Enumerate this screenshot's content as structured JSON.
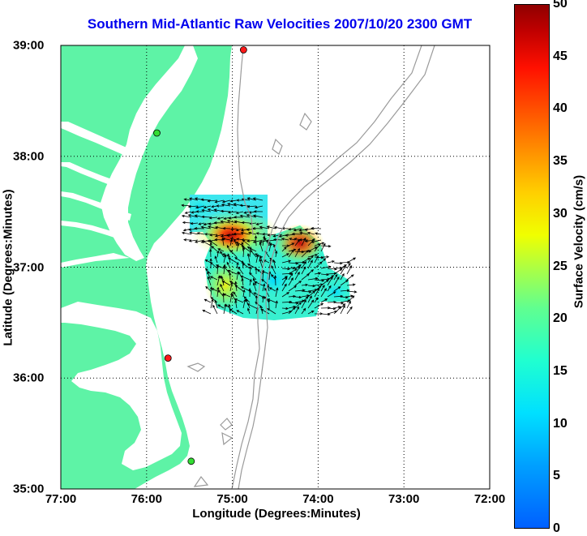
{
  "title": "Southern Mid-Atlantic Raw Velocities 2007/10/20 2300 GMT",
  "map": {
    "xlabel": "Longitude (Degrees:Minutes)",
    "ylabel": "Latitude (Degrees:Minutes)",
    "lon_range": [
      -77,
      -72
    ],
    "lat_range": [
      35,
      39
    ],
    "xticks": [
      "77:00",
      "76:00",
      "75:00",
      "74:00",
      "73:00",
      "72:00"
    ],
    "yticks": [
      "39:00",
      "38:00",
      "37:00",
      "36:00",
      "35:00"
    ],
    "grid": "dotted",
    "land_color": "#5ef3a6",
    "water_color": "#ffffff",
    "bathymetry_color": "#9a9a9a",
    "station_markers": [
      {
        "color": "#ff1a1a",
        "lon": -74.87,
        "lat": 38.96
      },
      {
        "color": "#33dd33",
        "lon": -75.88,
        "lat": 38.21
      },
      {
        "color": "#ff1a1a",
        "lon": -75.75,
        "lat": 36.18
      },
      {
        "color": "#33dd33",
        "lon": -75.48,
        "lat": 35.25
      }
    ]
  },
  "colorbar": {
    "label": "Surface Velocity (cm/s)",
    "range": [
      0,
      50
    ],
    "ticks": [
      "0",
      "5",
      "10",
      "15",
      "20",
      "25",
      "30",
      "35",
      "40",
      "45",
      "50"
    ],
    "colormap": "jet"
  }
}
